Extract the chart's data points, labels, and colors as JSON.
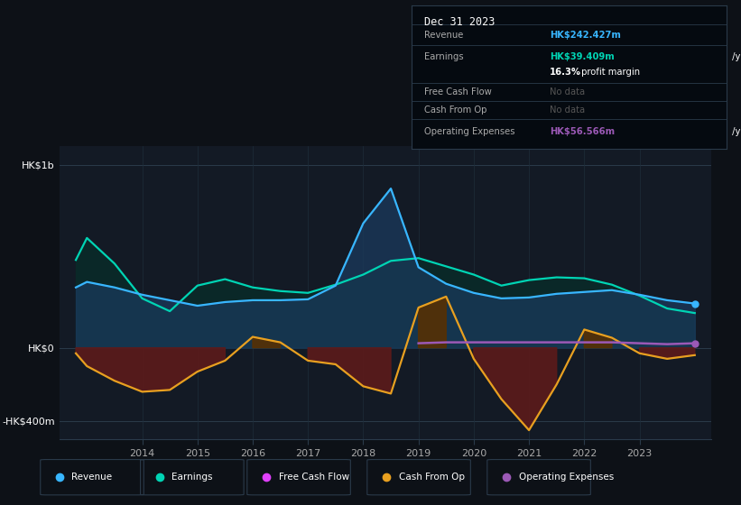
{
  "bg_color": "#0d1117",
  "chart_bg": "#131a25",
  "years": [
    2012.8,
    2013.0,
    2013.5,
    2014.0,
    2014.5,
    2015.0,
    2015.5,
    2016.0,
    2016.5,
    2017.0,
    2017.5,
    2018.0,
    2018.5,
    2019.0,
    2019.5,
    2020.0,
    2020.5,
    2021.0,
    2021.5,
    2022.0,
    2022.5,
    2023.0,
    2023.5,
    2024.0
  ],
  "revenue": [
    330,
    360,
    330,
    290,
    260,
    230,
    250,
    260,
    260,
    265,
    340,
    680,
    870,
    440,
    350,
    300,
    270,
    275,
    295,
    305,
    315,
    290,
    260,
    242
  ],
  "earnings": [
    480,
    600,
    460,
    270,
    200,
    340,
    375,
    330,
    310,
    300,
    345,
    400,
    475,
    490,
    445,
    400,
    340,
    370,
    385,
    380,
    345,
    285,
    215,
    190
  ],
  "cash_from_op": [
    -30,
    -100,
    -180,
    -240,
    -230,
    -130,
    -70,
    60,
    30,
    -70,
    -90,
    -210,
    -250,
    220,
    280,
    -60,
    -280,
    -450,
    -200,
    100,
    55,
    -30,
    -60,
    -40
  ],
  "op_expenses": [
    0,
    0,
    0,
    0,
    0,
    0,
    0,
    0,
    0,
    0,
    0,
    0,
    0,
    25,
    30,
    30,
    30,
    30,
    30,
    30,
    30,
    25,
    20,
    25
  ],
  "revenue_color": "#38b6ff",
  "earnings_color": "#00d4b4",
  "cash_from_op_color": "#e8a020",
  "op_expenses_color": "#9b59b6",
  "free_cash_flow_color": "#e040fb",
  "revenue_fill": "#1a3a5c",
  "earnings_fill": "#0a2828",
  "cash_neg_fill": "#5c1a1a",
  "cash_pos_fill": "#5a3000",
  "ylim_min": -500,
  "ylim_max": 1100,
  "xlim_min": 2012.5,
  "xlim_max": 2024.3,
  "xticks": [
    2014,
    2015,
    2016,
    2017,
    2018,
    2019,
    2020,
    2021,
    2022,
    2023
  ],
  "ytick_vals": [
    -400,
    0,
    1000
  ],
  "ytick_labels": [
    "-HK$400m",
    "HK$0",
    "HK$1b"
  ]
}
